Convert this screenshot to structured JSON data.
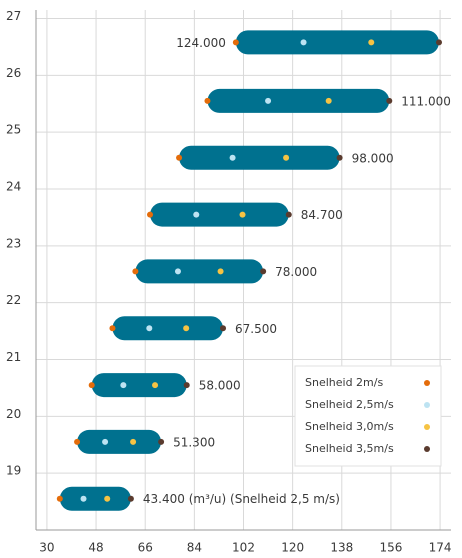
{
  "chart_data": {
    "type": "range-dot",
    "y": [
      18.55,
      19.55,
      20.55,
      21.55,
      22.55,
      23.55,
      24.55,
      25.55,
      26.58
    ],
    "series": [
      {
        "name": "Snelheid 2m/s",
        "color": "#e46c0a",
        "values": [
          34.72,
          41.04,
          46.4,
          54,
          62.4,
          67.76,
          78.4,
          88.8,
          99.2
        ]
      },
      {
        "name": "Snelheid 2,5m/s",
        "color": "#bde3f2",
        "values": [
          43.4,
          51.3,
          58,
          67.5,
          78,
          84.7,
          98,
          111,
          124
        ],
        "value_labels": [
          "43.400 (m³/u) (Snelheid 2,5 m/s)",
          "51.300",
          "58.000",
          "67.500",
          "78.000",
          "84.700",
          "98.000",
          "111.000",
          "124.000"
        ]
      },
      {
        "name": "Snelheid 3,0m/s",
        "color": "#f6c343",
        "values": [
          52.08,
          61.56,
          69.6,
          81,
          93.6,
          101.64,
          117.6,
          133.2,
          148.8
        ]
      },
      {
        "name": "Snelheid 3,5m/s",
        "color": "#5a3b2e",
        "values": [
          60.76,
          71.82,
          81.2,
          94.5,
          109.2,
          118.58,
          137.2,
          155.4,
          173.6
        ]
      }
    ],
    "bar_color": "#00718f",
    "xlim": [
      26,
      178
    ],
    "xticks": [
      30,
      48,
      66,
      84,
      102,
      120,
      138,
      156,
      174
    ],
    "ylim": [
      18,
      27.15
    ],
    "yticks": [
      19,
      20,
      21,
      22,
      23,
      24,
      25,
      26,
      27
    ],
    "grid": true,
    "legend": "lower right"
  }
}
